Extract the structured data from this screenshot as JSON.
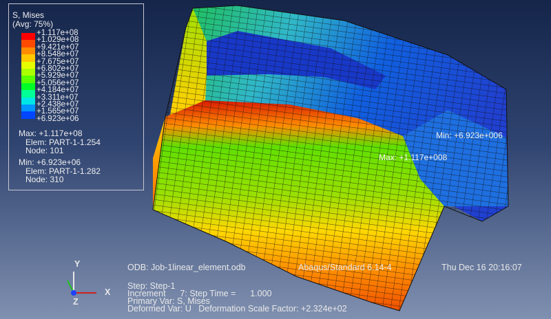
{
  "legend": {
    "title": "S, Mises",
    "subtitle": "(Avg: 75%)",
    "labels": [
      "+1.117e+08",
      "+1.029e+08",
      "+9.421e+07",
      "+8.548e+07",
      "+7.675e+07",
      "+6.802e+07",
      "+5.929e+07",
      "+5.056e+07",
      "+4.184e+07",
      "+3.311e+07",
      "+2.438e+07",
      "+1.565e+07",
      "+6.923e+06"
    ],
    "colors": [
      "#ff0000",
      "#ff4a00",
      "#ff8c00",
      "#ffc800",
      "#e6ff00",
      "#aaff00",
      "#5aff00",
      "#00ff28",
      "#00ff96",
      "#00e6e6",
      "#0096ff",
      "#0046ff",
      "#0000ff"
    ],
    "max": [
      "Max: +1.117e+08",
      "Elem: PART-1-1.254",
      "Node: 101"
    ],
    "min": [
      "Min: +6.923e+06",
      "Elem: PART-1-1.282",
      "Node: 310"
    ]
  },
  "annotations": {
    "min": "Min: +6.923e+006",
    "max": "Max: +1.117e+008"
  },
  "triad": {
    "x": "X",
    "y": "Y",
    "z": "Z"
  },
  "footer": {
    "odb": "ODB: Job-1linear_element.odb",
    "solver": "Abaqus/Standard 6.14-4",
    "date": "Thu Dec 16 20:16:07",
    "step": "Step: Step-1",
    "increment": "Increment      7: Step Time =      1.000",
    "primary": "Primary Var: S, Mises",
    "deformed": "Deformed Var: U   Deformation Scale Factor: +2.324e+02"
  }
}
